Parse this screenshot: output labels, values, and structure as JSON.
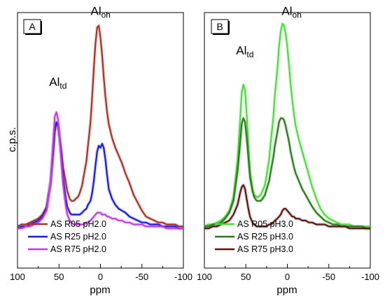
{
  "chart_data": [
    {
      "type": "line",
      "panel_label": "A",
      "xlabel": "ppm",
      "ylabel": "c.p.s.",
      "xlim": [
        100,
        -100
      ],
      "x_reversed": true,
      "ylim": [
        0,
        1.1
      ],
      "x_ticks": [
        "100",
        "50",
        "0",
        "-50",
        "-100"
      ],
      "legend_position": "bottom-center",
      "annotations": [
        {
          "main": "Al",
          "sub": "td",
          "x": 50,
          "y": 0.72
        },
        {
          "main": "Al",
          "sub": "oh",
          "x": 0,
          "y": 1.08
        }
      ],
      "series": [
        {
          "name": "AS R05 pH2.0",
          "color": "#a93226",
          "x": [
            100,
            95,
            90,
            85,
            80,
            75,
            70,
            65,
            60,
            57,
            55,
            53,
            51,
            49,
            47,
            45,
            42,
            40,
            37,
            35,
            32,
            30,
            27,
            25,
            22,
            20,
            17,
            15,
            12,
            10,
            8,
            6,
            4,
            2,
            0,
            -2,
            -4,
            -6,
            -8,
            -10,
            -14,
            -18,
            -22,
            -26,
            -30,
            -35,
            -40,
            -45,
            -50,
            -55,
            -60,
            -65,
            -70,
            -75,
            -80,
            -85,
            -90,
            -95,
            -100
          ],
          "y": [
            0.02,
            0.03,
            0.03,
            0.04,
            0.05,
            0.06,
            0.08,
            0.12,
            0.25,
            0.4,
            0.5,
            0.54,
            0.53,
            0.47,
            0.4,
            0.32,
            0.25,
            0.2,
            0.16,
            0.15,
            0.15,
            0.16,
            0.17,
            0.19,
            0.23,
            0.28,
            0.35,
            0.43,
            0.55,
            0.68,
            0.82,
            0.95,
            1.03,
            1.04,
            0.98,
            0.89,
            0.78,
            0.68,
            0.6,
            0.54,
            0.47,
            0.42,
            0.38,
            0.34,
            0.29,
            0.24,
            0.18,
            0.14,
            0.1,
            0.07,
            0.06,
            0.05,
            0.04,
            0.04,
            0.03,
            0.03,
            0.03,
            0.02,
            0.02
          ]
        },
        {
          "name": "AS R25 pH2.0",
          "color": "#1a1adb",
          "x": [
            100,
            95,
            90,
            85,
            80,
            75,
            70,
            65,
            60,
            57,
            55,
            53,
            51,
            49,
            47,
            45,
            42,
            40,
            37,
            35,
            32,
            30,
            27,
            25,
            22,
            20,
            17,
            15,
            12,
            10,
            8,
            6,
            4,
            2,
            0,
            -2,
            -4,
            -6,
            -8,
            -10,
            -14,
            -18,
            -22,
            -26,
            -30,
            -35,
            -40,
            -45,
            -50,
            -55,
            -60,
            -65,
            -70,
            -75,
            -80,
            -85,
            -90,
            -95,
            -100
          ],
          "y": [
            0.01,
            0.02,
            0.02,
            0.03,
            0.04,
            0.05,
            0.07,
            0.11,
            0.24,
            0.4,
            0.52,
            0.55,
            0.53,
            0.46,
            0.37,
            0.27,
            0.17,
            0.12,
            0.09,
            0.08,
            0.08,
            0.08,
            0.08,
            0.08,
            0.09,
            0.1,
            0.11,
            0.13,
            0.15,
            0.19,
            0.25,
            0.33,
            0.4,
            0.43,
            0.42,
            0.44,
            0.42,
            0.36,
            0.28,
            0.21,
            0.16,
            0.13,
            0.11,
            0.1,
            0.09,
            0.07,
            0.06,
            0.05,
            0.04,
            0.04,
            0.03,
            0.03,
            0.03,
            0.02,
            0.02,
            0.02,
            0.02,
            0.01,
            0.01
          ]
        },
        {
          "name": "AS R75 pH2.0",
          "color": "#c43ae8",
          "x": [
            100,
            95,
            90,
            85,
            80,
            75,
            70,
            65,
            60,
            57,
            55,
            53,
            51,
            49,
            47,
            45,
            42,
            40,
            37,
            35,
            32,
            30,
            27,
            25,
            22,
            20,
            17,
            15,
            12,
            10,
            8,
            6,
            4,
            2,
            0,
            -2,
            -4,
            -6,
            -8,
            -10,
            -14,
            -18,
            -22,
            -26,
            -30,
            -35,
            -40,
            -45,
            -50,
            -55,
            -60,
            -65,
            -70,
            -75,
            -80,
            -85,
            -90,
            -95,
            -100
          ],
          "y": [
            0.01,
            0.01,
            0.02,
            0.02,
            0.03,
            0.04,
            0.06,
            0.1,
            0.25,
            0.45,
            0.58,
            0.6,
            0.56,
            0.46,
            0.34,
            0.23,
            0.13,
            0.08,
            0.05,
            0.04,
            0.03,
            0.03,
            0.03,
            0.03,
            0.03,
            0.03,
            0.04,
            0.04,
            0.05,
            0.06,
            0.07,
            0.08,
            0.09,
            0.09,
            0.09,
            0.08,
            0.08,
            0.08,
            0.07,
            0.07,
            0.06,
            0.06,
            0.05,
            0.05,
            0.04,
            0.04,
            0.03,
            0.03,
            0.03,
            0.02,
            0.02,
            0.02,
            0.02,
            0.02,
            0.01,
            0.01,
            0.01,
            0.01,
            0.01
          ]
        }
      ]
    },
    {
      "type": "line",
      "panel_label": "B",
      "xlabel": "ppm",
      "ylabel": "",
      "xlim": [
        100,
        -100
      ],
      "x_reversed": true,
      "ylim": [
        0,
        1.1
      ],
      "x_ticks": [
        "100",
        "50",
        "0",
        "-50",
        "-100"
      ],
      "legend_position": "bottom-center",
      "annotations": [
        {
          "main": "Al",
          "sub": "td",
          "x": 50,
          "y": 0.88
        },
        {
          "main": "Al",
          "sub": "oh",
          "x": -5,
          "y": 1.08
        }
      ],
      "series": [
        {
          "name": "AS R05 pH3.0",
          "color": "#47e03a",
          "x": [
            100,
            95,
            90,
            85,
            80,
            75,
            70,
            65,
            60,
            57,
            55,
            53,
            51,
            49,
            47,
            45,
            42,
            40,
            37,
            35,
            32,
            30,
            27,
            25,
            22,
            20,
            17,
            15,
            12,
            10,
            8,
            6,
            4,
            2,
            0,
            -2,
            -4,
            -6,
            -8,
            -10,
            -14,
            -18,
            -22,
            -26,
            -30,
            -35,
            -40,
            -45,
            -50,
            -55,
            -60,
            -65,
            -70,
            -75,
            -80,
            -85,
            -90,
            -95,
            -100
          ],
          "y": [
            0.02,
            0.03,
            0.03,
            0.04,
            0.05,
            0.07,
            0.1,
            0.17,
            0.36,
            0.56,
            0.7,
            0.74,
            0.71,
            0.59,
            0.44,
            0.3,
            0.21,
            0.18,
            0.17,
            0.17,
            0.18,
            0.2,
            0.23,
            0.28,
            0.36,
            0.45,
            0.57,
            0.69,
            0.82,
            0.93,
            1.01,
            1.05,
            1.04,
            1.0,
            0.93,
            0.84,
            0.74,
            0.66,
            0.59,
            0.53,
            0.46,
            0.4,
            0.34,
            0.28,
            0.22,
            0.16,
            0.11,
            0.08,
            0.06,
            0.05,
            0.04,
            0.03,
            0.03,
            0.03,
            0.02,
            0.02,
            0.02,
            0.02,
            0.02
          ]
        },
        {
          "name": "AS R25 pH3.0",
          "color": "#2d7a1e",
          "x": [
            100,
            95,
            90,
            85,
            80,
            75,
            70,
            65,
            60,
            57,
            55,
            53,
            51,
            49,
            47,
            45,
            42,
            40,
            37,
            35,
            32,
            30,
            27,
            25,
            22,
            20,
            17,
            15,
            12,
            10,
            8,
            6,
            4,
            2,
            0,
            -2,
            -4,
            -6,
            -8,
            -10,
            -14,
            -18,
            -22,
            -26,
            -30,
            -35,
            -40,
            -45,
            -50,
            -55,
            -60,
            -65,
            -70,
            -75,
            -80,
            -85,
            -90,
            -95,
            -100
          ],
          "y": [
            0.02,
            0.02,
            0.03,
            0.03,
            0.04,
            0.06,
            0.09,
            0.15,
            0.3,
            0.44,
            0.54,
            0.57,
            0.55,
            0.47,
            0.37,
            0.27,
            0.2,
            0.17,
            0.15,
            0.15,
            0.15,
            0.16,
            0.18,
            0.21,
            0.25,
            0.3,
            0.37,
            0.43,
            0.5,
            0.55,
            0.57,
            0.57,
            0.56,
            0.53,
            0.49,
            0.45,
            0.4,
            0.36,
            0.32,
            0.29,
            0.25,
            0.21,
            0.18,
            0.15,
            0.12,
            0.09,
            0.07,
            0.05,
            0.04,
            0.03,
            0.03,
            0.02,
            0.02,
            0.02,
            0.02,
            0.02,
            0.02,
            0.01,
            0.01
          ]
        },
        {
          "name": "AS R75 pH3.0",
          "color": "#5a1712",
          "x": [
            100,
            95,
            90,
            85,
            80,
            75,
            70,
            65,
            60,
            57,
            55,
            53,
            51,
            49,
            47,
            45,
            42,
            40,
            37,
            35,
            32,
            30,
            27,
            25,
            22,
            20,
            17,
            15,
            12,
            10,
            8,
            6,
            4,
            2,
            0,
            -2,
            -4,
            -6,
            -8,
            -10,
            -14,
            -18,
            -22,
            -26,
            -30,
            -35,
            -40,
            -45,
            -50,
            -55,
            -60,
            -65,
            -70,
            -75,
            -80,
            -85,
            -90,
            -95,
            -100
          ],
          "y": [
            0.01,
            0.01,
            0.02,
            0.02,
            0.03,
            0.04,
            0.05,
            0.08,
            0.13,
            0.19,
            0.22,
            0.23,
            0.21,
            0.16,
            0.11,
            0.07,
            0.04,
            0.03,
            0.02,
            0.02,
            0.02,
            0.02,
            0.02,
            0.02,
            0.03,
            0.03,
            0.04,
            0.05,
            0.06,
            0.07,
            0.08,
            0.1,
            0.11,
            0.11,
            0.1,
            0.09,
            0.08,
            0.07,
            0.07,
            0.06,
            0.06,
            0.05,
            0.05,
            0.04,
            0.04,
            0.03,
            0.03,
            0.03,
            0.02,
            0.02,
            0.02,
            0.02,
            0.02,
            0.01,
            0.01,
            0.01,
            0.01,
            0.01,
            0.01
          ]
        }
      ]
    }
  ]
}
